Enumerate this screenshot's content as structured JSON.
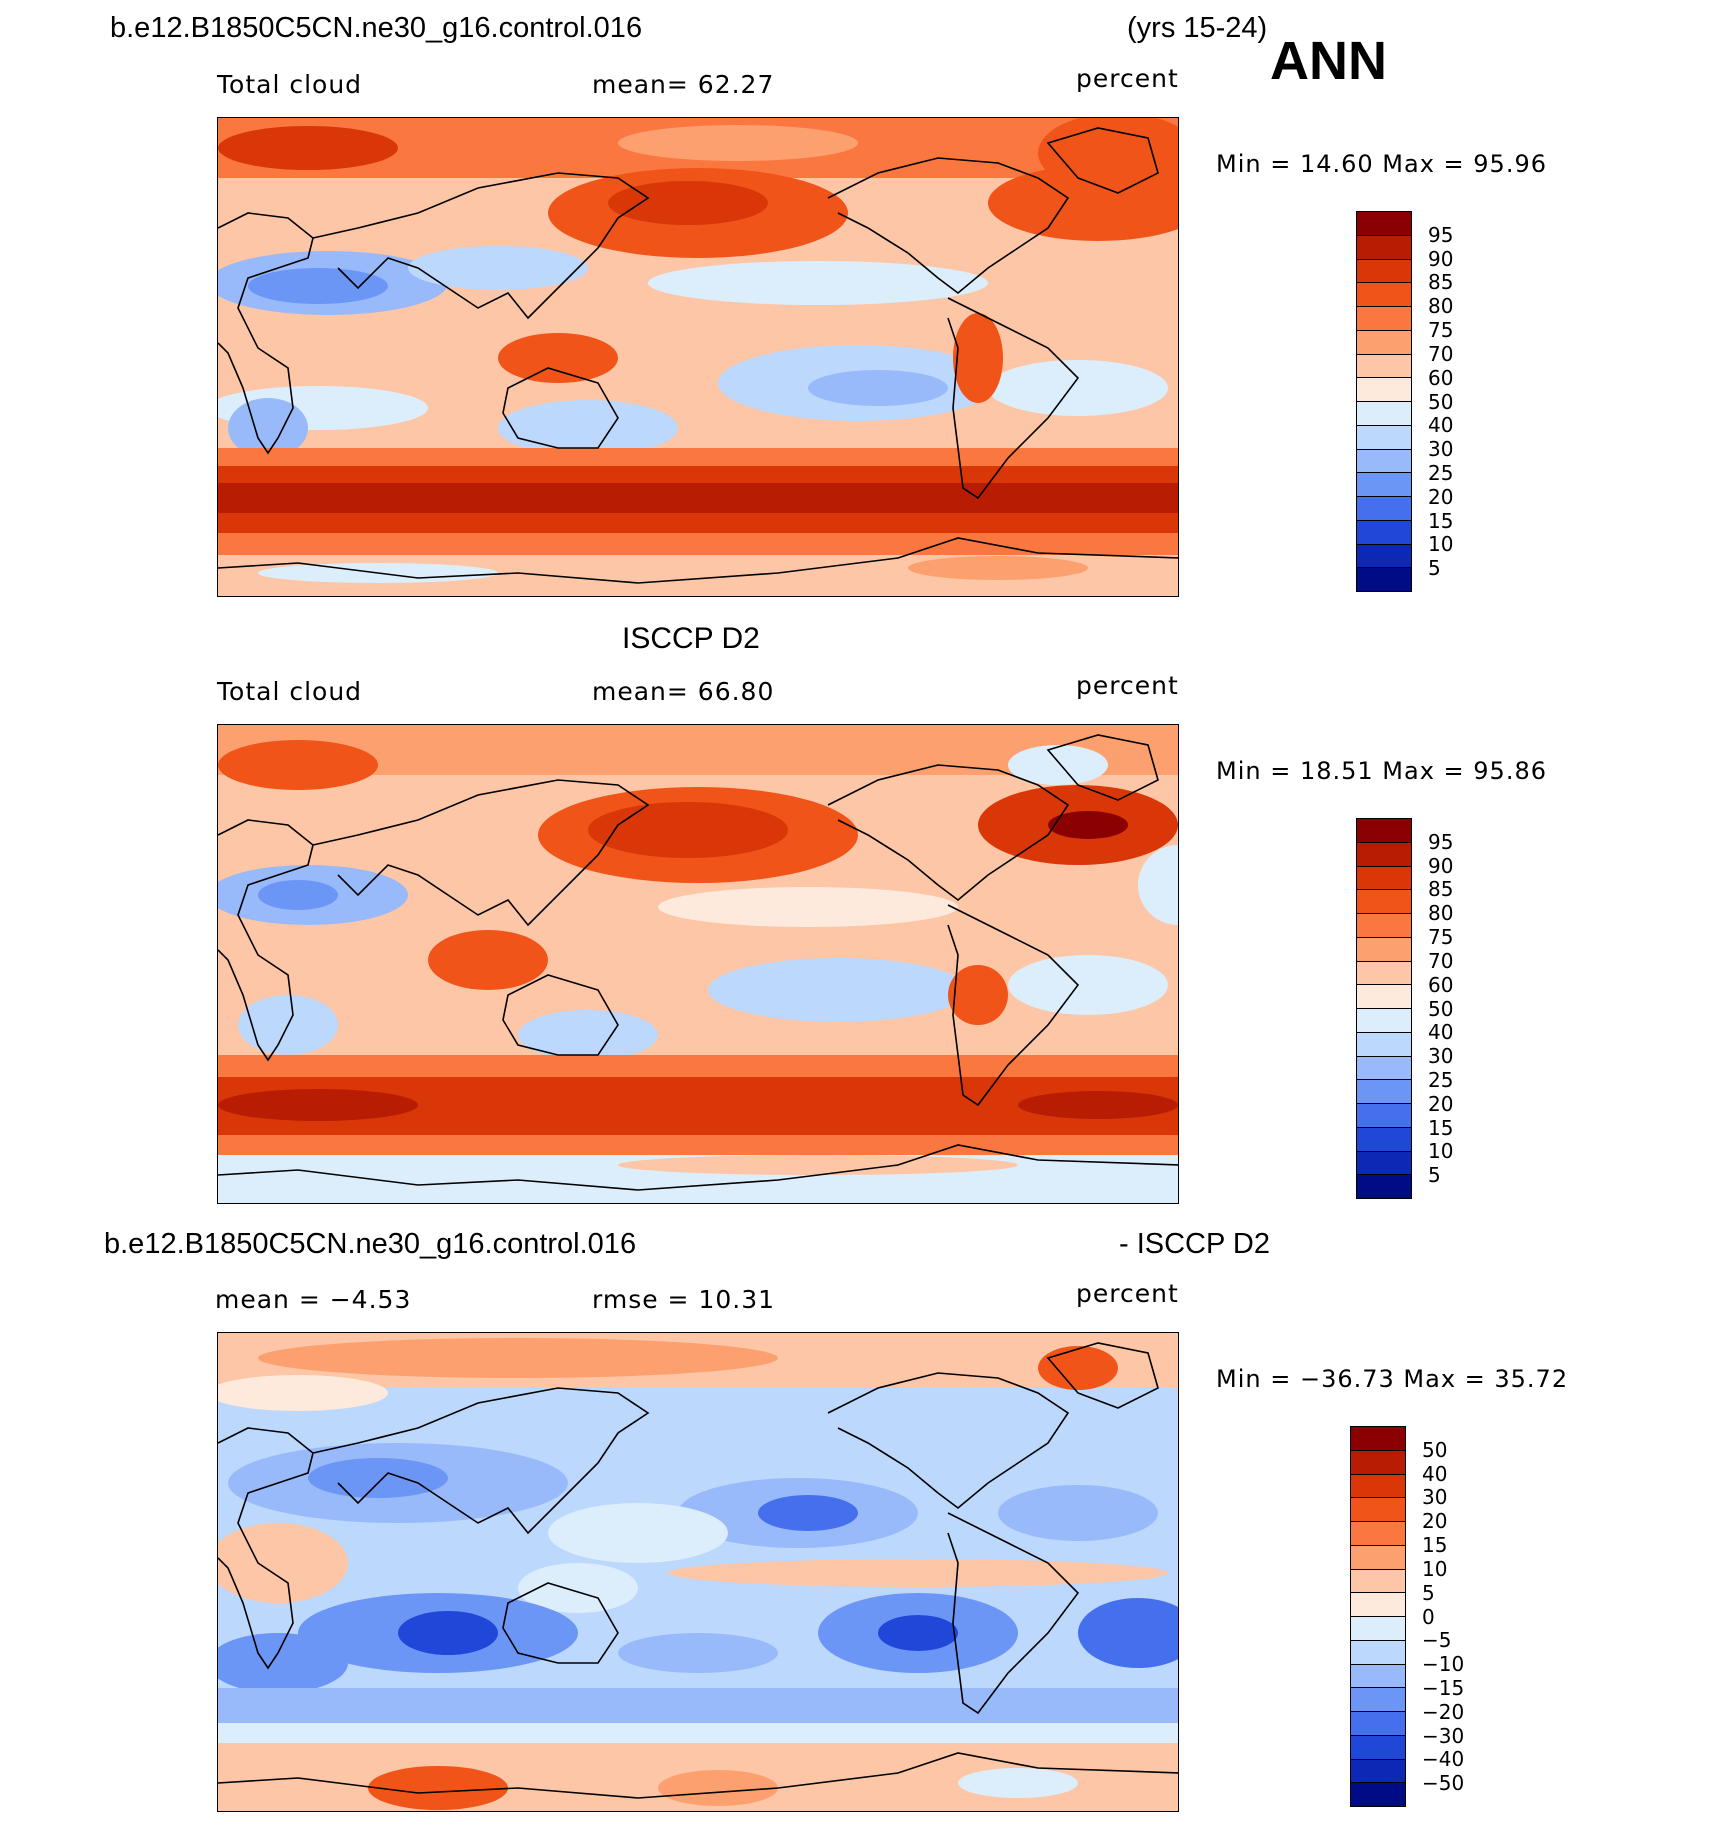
{
  "header": {
    "case_name": "b.e12.B1850C5CN.ne30_g16.control.016",
    "years": "(yrs 15-24)",
    "season": "ANN"
  },
  "panels": [
    {
      "id": "model",
      "title": "",
      "variable": "Total cloud",
      "stat": "mean=   62.27",
      "units": "percent",
      "minmax": "Min =   14.60  Max =   95.96",
      "colorbar": {
        "labels": [
          "95",
          "90",
          "85",
          "80",
          "75",
          "70",
          "60",
          "50",
          "40",
          "30",
          "25",
          "20",
          "15",
          "10",
          "5"
        ],
        "colors": [
          "#8b0000",
          "#b81c02",
          "#d93708",
          "#f05418",
          "#fa7840",
          "#fca070",
          "#fdc6a6",
          "#feeadc",
          "#dceefc",
          "#bcd8fc",
          "#98bafa",
          "#6c96f6",
          "#4470ee",
          "#2048d8",
          "#0c28b4",
          "#000c86"
        ]
      }
    },
    {
      "id": "obs",
      "title": "ISCCP D2",
      "variable": "Total cloud",
      "stat": "mean=   66.80",
      "units": "percent",
      "minmax": "Min =   18.51  Max =   95.86",
      "colorbar": {
        "labels": [
          "95",
          "90",
          "85",
          "80",
          "75",
          "70",
          "60",
          "50",
          "40",
          "30",
          "25",
          "20",
          "15",
          "10",
          "5"
        ],
        "colors": [
          "#8b0000",
          "#b81c02",
          "#d93708",
          "#f05418",
          "#fa7840",
          "#fca070",
          "#fdc6a6",
          "#feeadc",
          "#dceefc",
          "#bcd8fc",
          "#98bafa",
          "#6c96f6",
          "#4470ee",
          "#2048d8",
          "#0c28b4",
          "#000c86"
        ]
      }
    },
    {
      "id": "diff",
      "title_left": "b.e12.B1850C5CN.ne30_g16.control.016",
      "title_right": "- ISCCP D2",
      "variable": "mean =   −4.53",
      "stat": "rmse =   10.31",
      "units": "percent",
      "minmax": "Min = −36.73  Max =   35.72",
      "colorbar": {
        "labels": [
          "50",
          "40",
          "30",
          "20",
          "15",
          "10",
          "5",
          "0",
          "−5",
          "−10",
          "−15",
          "−20",
          "−30",
          "−40",
          "−50"
        ],
        "colors": [
          "#8b0000",
          "#b81c02",
          "#d93708",
          "#f05418",
          "#fa7840",
          "#fca070",
          "#fdc6a6",
          "#feeadc",
          "#dceefc",
          "#bcd8fc",
          "#98bafa",
          "#6c96f6",
          "#4470ee",
          "#2048d8",
          "#0c28b4",
          "#000c86"
        ]
      }
    }
  ]
}
